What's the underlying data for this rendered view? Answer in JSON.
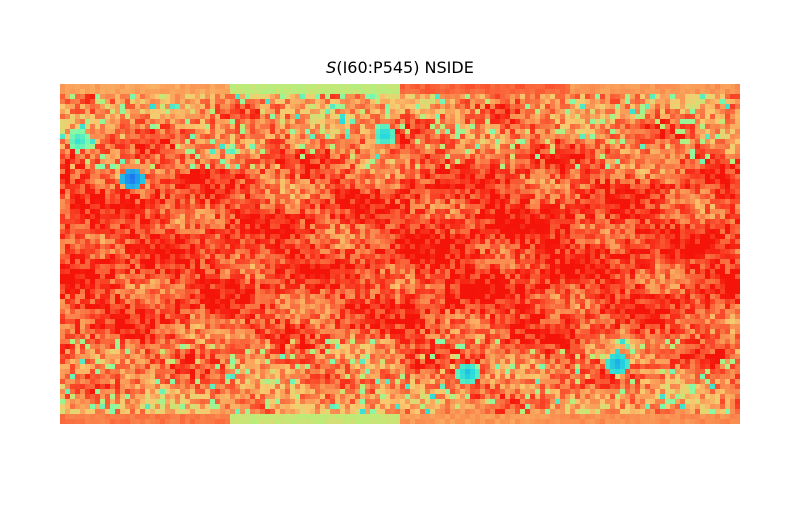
{
  "chart_data": {
    "type": "heatmap",
    "title_symbol": "S",
    "title_rest": "(I60:P545) NSIDE",
    "projection": "cartesian full-sky map",
    "colormap": "rainbow",
    "colorbar": "none",
    "axes": "hidden",
    "value_range": [
      0,
      1
    ],
    "panel_count": 4,
    "panel_mean_levels": [
      0.86,
      0.85,
      0.88,
      0.86
    ],
    "polar_band_levels": {
      "top": [
        0.78,
        0.6,
        0.88,
        0.8
      ],
      "bottom": [
        0.85,
        0.62,
        0.8,
        0.82
      ]
    },
    "low_value_spots": [
      {
        "lon": 115,
        "lat": -58,
        "value": 0.18
      },
      {
        "lon": 36,
        "lat": -63,
        "value": 0.22
      },
      {
        "lon": -8,
        "lat": 63,
        "value": 0.25
      },
      {
        "lon": -142,
        "lat": 40,
        "value": 0.08
      },
      {
        "lon": -170,
        "lat": 60,
        "value": 0.3
      }
    ]
  }
}
